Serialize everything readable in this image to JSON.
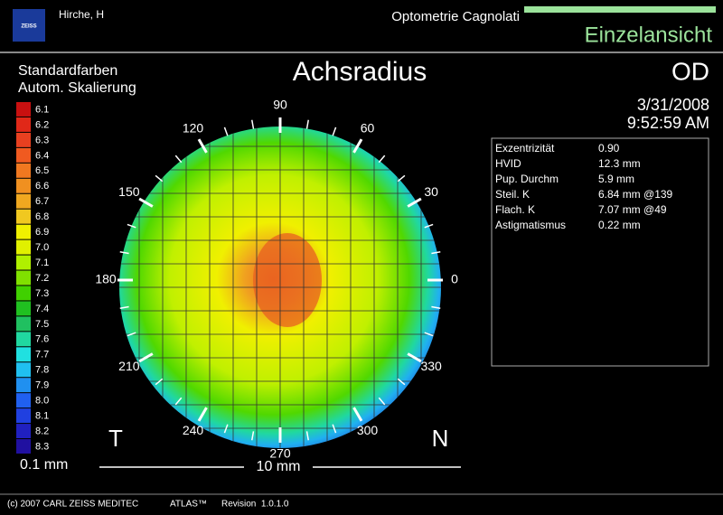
{
  "header": {
    "logo": "ZEISS",
    "patient": "Hirche, H",
    "practice": "Optometrie Cagnolati",
    "view": "Einzelansicht"
  },
  "legend": {
    "title": [
      "Standardfarben",
      "Autom. Skalierung"
    ],
    "items": [
      {
        "label": "6.1",
        "color": "#c81010"
      },
      {
        "label": "6.2",
        "color": "#e02818"
      },
      {
        "label": "6.3",
        "color": "#e84020"
      },
      {
        "label": "6.4",
        "color": "#f05a20"
      },
      {
        "label": "6.5",
        "color": "#f07820"
      },
      {
        "label": "6.6",
        "color": "#f09020"
      },
      {
        "label": "6.7",
        "color": "#f0a820"
      },
      {
        "label": "6.8",
        "color": "#f0c820"
      },
      {
        "label": "6.9",
        "color": "#f0f000"
      },
      {
        "label": "7.0",
        "color": "#e0f000"
      },
      {
        "label": "7.1",
        "color": "#b0f000"
      },
      {
        "label": "7.2",
        "color": "#80e000"
      },
      {
        "label": "7.3",
        "color": "#40d000"
      },
      {
        "label": "7.4",
        "color": "#20c020"
      },
      {
        "label": "7.5",
        "color": "#20c060"
      },
      {
        "label": "7.6",
        "color": "#20d8a0"
      },
      {
        "label": "7.7",
        "color": "#20e0e0"
      },
      {
        "label": "7.8",
        "color": "#20c0f0"
      },
      {
        "label": "7.9",
        "color": "#2090f0"
      },
      {
        "label": "8.0",
        "color": "#2060f0"
      },
      {
        "label": "8.1",
        "color": "#2040e0"
      },
      {
        "label": "8.2",
        "color": "#2020c0"
      },
      {
        "label": "8.3",
        "color": "#2010a0"
      }
    ],
    "step": "0.1 mm"
  },
  "map": {
    "title": "Achsradius",
    "angles": [
      "90",
      "60",
      "30",
      "0",
      "330",
      "300",
      "270",
      "240",
      "210",
      "180",
      "150",
      "120"
    ],
    "temporal": "T",
    "nasal": "N",
    "scale": "10 mm"
  },
  "eye": "OD",
  "date": "3/31/2008",
  "time": "9:52:59 AM",
  "info": [
    [
      "Exzentrizität",
      "0.90"
    ],
    [
      "HVID",
      "12.3 mm"
    ],
    [
      "Pup. Durchm",
      "5.9 mm"
    ],
    [
      "Steil. K",
      "6.84 mm @139"
    ],
    [
      "Flach. K",
      "7.07 mm @49"
    ],
    [
      "Astigmatismus",
      "0.22 mm"
    ]
  ],
  "footer": {
    "copyright": "(c) 2007 CARL ZEISS MEDITEC",
    "product": "ATLAS™",
    "revision": "Revision  1.0.1.0"
  }
}
